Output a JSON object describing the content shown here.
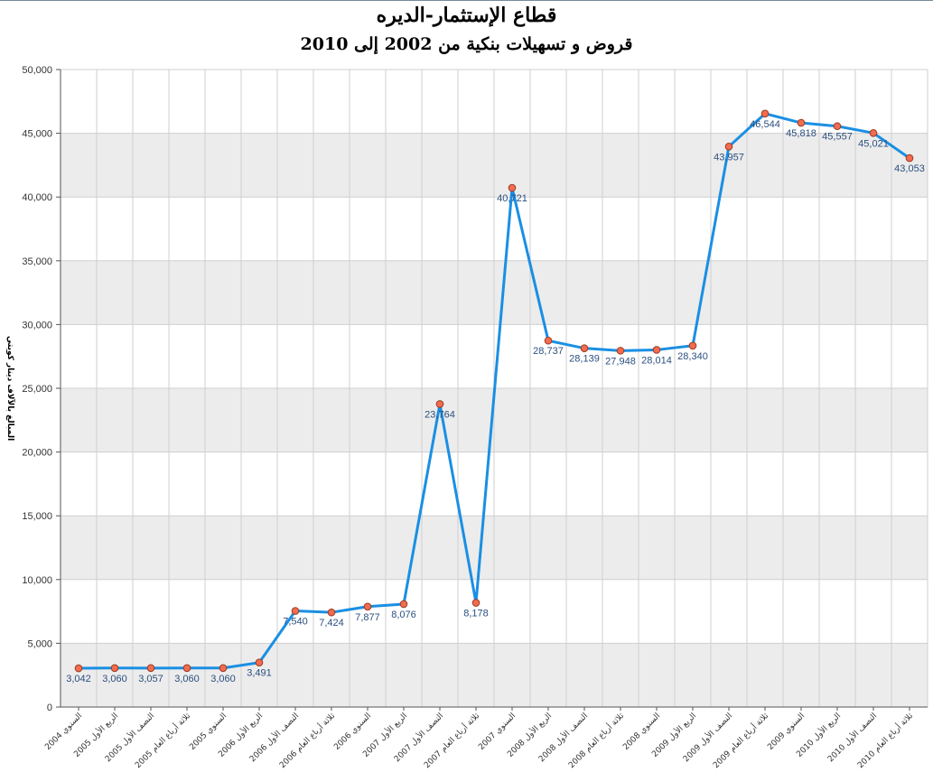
{
  "chart_data": {
    "type": "line",
    "title": "قطاع الإستثمار-الديره",
    "subtitle": "قروض و تسهيلات بنكية من 2002 إلى 2010",
    "xlabel": "",
    "ylabel": "المبالغ بالآلاف دينار كويتي",
    "ylim": [
      0,
      50000
    ],
    "yticks": [
      "0",
      "5,000",
      "10,000",
      "15,000",
      "20,000",
      "25,000",
      "30,000",
      "35,000",
      "40,000",
      "45,000",
      "50,000"
    ],
    "grid": true,
    "categories": [
      "السنوي 2004",
      "الربع الأول 2005",
      "النصف الأول 2005",
      "ثلاثة أرباع العام 2005",
      "السنوي 2005",
      "الربع الأول 2006",
      "النصف الأول 2006",
      "ثلاثة أرباع العام 2006",
      "السنوي 2006",
      "الربع الأول 2007",
      "النصف الأول 2007",
      "ثلاثة أرباع العام 2007",
      "السنوي 2007",
      "الربع الأول 2008",
      "النصف الأول 2008",
      "ثلاثة أرباع العام 2008",
      "السنوي 2008",
      "الربع الأول 2009",
      "النصف الأول 2009",
      "ثلاثة أرباع العام 2009",
      "السنوي 2009",
      "الربع الأول 2010",
      "النصف الأول 2010",
      "ثلاثة أرباع العام 2010"
    ],
    "values": [
      3042,
      3060,
      3057,
      3060,
      3060,
      3491,
      7540,
      7424,
      7877,
      8076,
      23764,
      8178,
      40721,
      28737,
      28139,
      27948,
      28014,
      28340,
      43957,
      46544,
      45818,
      45557,
      45021,
      43053
    ],
    "value_labels": [
      "3,042",
      "3,060",
      "3,057",
      "3,060",
      "3,060",
      "3,491",
      "7,540",
      "7,424",
      "7,877",
      "8,076",
      "23,764",
      "8,178",
      "40,721",
      "28,737",
      "28,139",
      "27,948",
      "28,014",
      "28,340",
      "43,957",
      "46,544",
      "45,818",
      "45,557",
      "45,021",
      "43,053"
    ],
    "colors": {
      "line": "#1a8fe3",
      "marker_fill": "#f26c4f",
      "marker_stroke": "#9a3b22",
      "band": "#ececec",
      "grid": "#cfcfcf"
    }
  }
}
